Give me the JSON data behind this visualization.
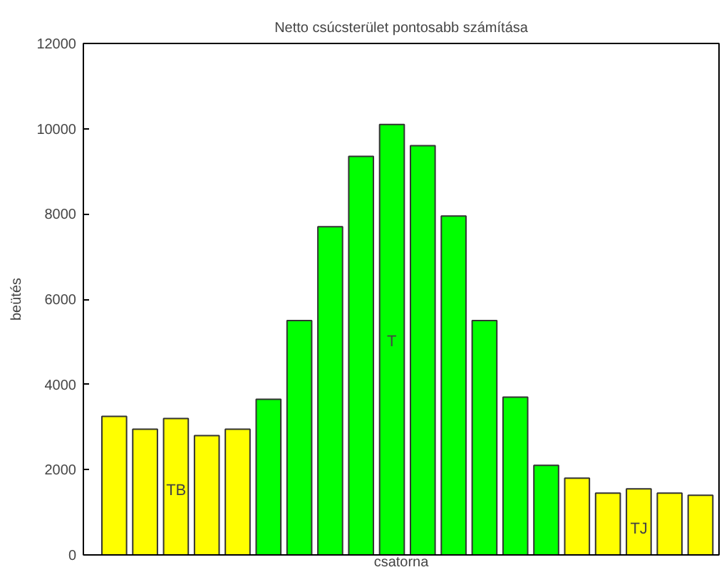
{
  "chart_data": {
    "type": "bar",
    "title": "Netto csúcsterület pontosabb számítása",
    "xlabel": "csatorna",
    "ylabel": "beütés",
    "categories": [
      null,
      null,
      null,
      null,
      null,
      null,
      null,
      null,
      null,
      null,
      null,
      null,
      null,
      null,
      null,
      null,
      null,
      null,
      null,
      null
    ],
    "values": [
      3250,
      2950,
      3200,
      2800,
      2950,
      3650,
      5500,
      7700,
      9350,
      10100,
      9600,
      7950,
      5500,
      3700,
      2100,
      1800,
      1450,
      1550,
      1450,
      1400
    ],
    "colors": [
      "#ffff00",
      "#ffff00",
      "#ffff00",
      "#ffff00",
      "#ffff00",
      "#00ff00",
      "#00ff00",
      "#00ff00",
      "#00ff00",
      "#00ff00",
      "#00ff00",
      "#00ff00",
      "#00ff00",
      "#00ff00",
      "#00ff00",
      "#ffff00",
      "#ffff00",
      "#ffff00",
      "#ffff00",
      "#ffff00"
    ],
    "ylim": [
      0,
      12000
    ],
    "yticks": [
      0,
      2000,
      4000,
      6000,
      8000,
      10000,
      12000
    ],
    "grid": false,
    "annotations": [
      "TB",
      "T",
      "TJ"
    ]
  }
}
